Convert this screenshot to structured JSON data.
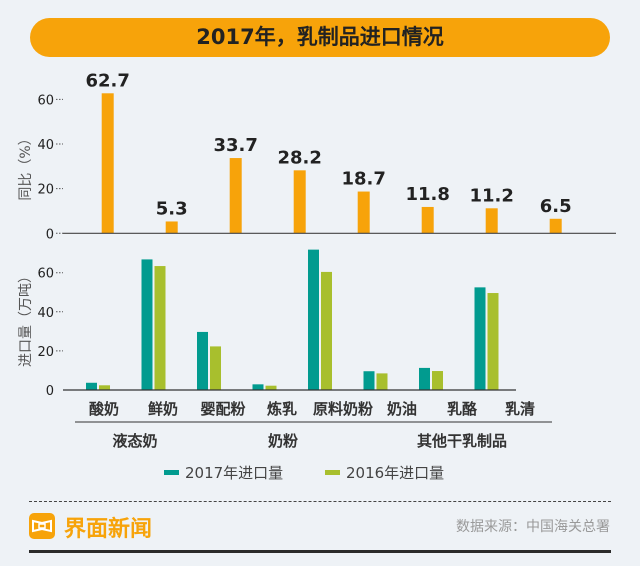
{
  "title": "2017年，乳制品进口情况",
  "chart_data": [
    {
      "type": "bar",
      "ylabel": "同比（%）",
      "ylim": [
        0,
        70
      ],
      "yticks": [
        0,
        20,
        40,
        60
      ],
      "grid": false,
      "categories": [
        "酸奶",
        "鲜奶",
        "婴配粉",
        "炼乳",
        "原料奶粉",
        "奶油",
        "乳酪",
        "乳清"
      ],
      "values": [
        62.7,
        5.3,
        33.7,
        28.2,
        18.7,
        11.8,
        11.2,
        6.5
      ],
      "data_labels": [
        "62.7",
        "5.3",
        "33.7",
        "28.2",
        "18.7",
        "11.8",
        "11.2",
        "6.5"
      ],
      "color": "#f7a30a"
    },
    {
      "type": "bar",
      "ylabel": "进口量（万吨）",
      "ylim": [
        0,
        75
      ],
      "yticks": [
        0,
        20,
        40,
        60
      ],
      "grid": false,
      "categories": [
        "酸奶",
        "鲜奶",
        "婴配粉",
        "炼乳",
        "原料奶粉",
        "奶油",
        "乳酪",
        "乳清"
      ],
      "groups": [
        {
          "label": "液态奶"
        },
        {
          "label": "奶粉"
        },
        {
          "label": "其他干乳制品"
        }
      ],
      "legend_position": "bottom",
      "series": [
        {
          "name": "2017年进口量",
          "color": "#019b8f",
          "values": [
            3.7,
            66.8,
            29.7,
            2.9,
            71.8,
            9.6,
            11.3,
            52.5
          ]
        },
        {
          "name": "2016年进口量",
          "color": "#a8bf2d",
          "values": [
            2.4,
            63.4,
            22.3,
            2.2,
            60.4,
            8.5,
            9.7,
            49.6
          ]
        }
      ]
    }
  ],
  "footer": {
    "brand": "界面新闻",
    "source": "数据来源：中国海关总署"
  }
}
